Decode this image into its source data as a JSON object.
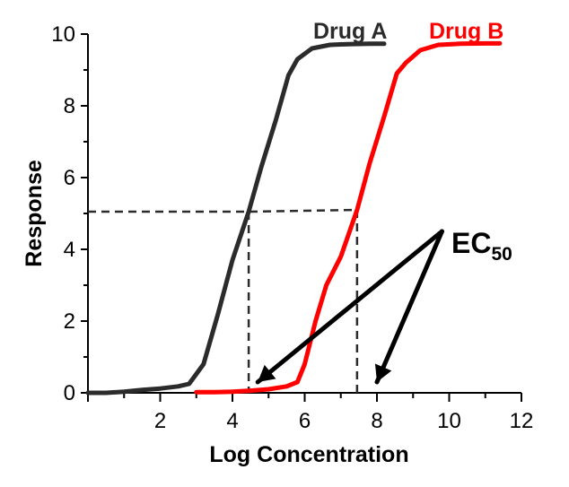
{
  "chart_data": {
    "type": "line",
    "title": "",
    "xlabel": "Log Concentration",
    "ylabel": "Response",
    "xlim": [
      0,
      12
    ],
    "ylim": [
      0,
      10
    ],
    "xticks": [
      "2",
      "4",
      "6",
      "8",
      "10",
      "12"
    ],
    "yticks": [
      "0",
      "2",
      "4",
      "6",
      "8",
      "10"
    ],
    "grid": false,
    "series": [
      {
        "name": "Drug A",
        "color": "#2b2b2b",
        "x": [
          0.0,
          0.5,
          1.0,
          1.5,
          2.0,
          2.5,
          2.8,
          3.2,
          3.6,
          4.0,
          4.45,
          4.8,
          5.2,
          5.55,
          5.8,
          6.2,
          6.7,
          7.2,
          7.8,
          8.2
        ],
        "y": [
          0.0,
          0.0,
          0.03,
          0.08,
          0.12,
          0.18,
          0.25,
          0.8,
          2.2,
          3.7,
          5.05,
          6.3,
          7.6,
          8.85,
          9.3,
          9.6,
          9.7,
          9.72,
          9.73,
          9.73
        ]
      },
      {
        "name": "Drug B",
        "color": "#ff0000",
        "x": [
          3.0,
          3.5,
          4.0,
          4.5,
          5.0,
          5.5,
          5.8,
          6.0,
          6.3,
          6.6,
          7.0,
          7.45,
          7.8,
          8.2,
          8.55,
          8.8,
          9.2,
          9.7,
          10.3,
          11.0,
          11.4
        ],
        "y": [
          0.02,
          0.02,
          0.03,
          0.06,
          0.1,
          0.18,
          0.3,
          0.8,
          2.0,
          3.0,
          3.8,
          5.1,
          6.4,
          7.7,
          8.9,
          9.2,
          9.55,
          9.7,
          9.73,
          9.74,
          9.74
        ]
      }
    ],
    "reference_lines": {
      "ec50_level": 5.05,
      "ec50_level_b": 5.1,
      "drug_a_ec50_x": 4.45,
      "drug_b_ec50_x": 7.45
    },
    "annotation": {
      "text": "EC",
      "subscript": "50",
      "anchor": [
        9.8,
        4.5
      ],
      "arrow_targets": [
        [
          4.7,
          0.3
        ],
        [
          8.0,
          0.3
        ]
      ]
    }
  }
}
